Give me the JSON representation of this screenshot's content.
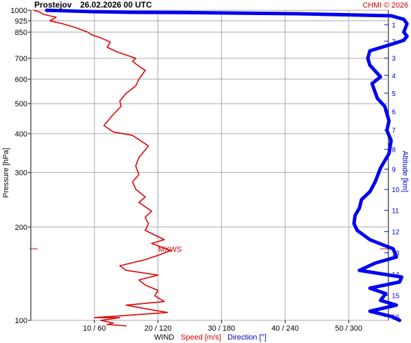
{
  "header": {
    "station": "Prostejov",
    "datetime": "26.02.2026 00 UTC",
    "copyright": "CHMI © 2026"
  },
  "chart_data": {
    "type": "line",
    "title": "Prostejov 26.02.2026 00 UTC",
    "xlabel": "WIND",
    "xlabel_speed": "Speed [m/s]",
    "xlabel_direction": "Direction [°]",
    "ylabel": "Pressure [hPa]",
    "ylabel_right": "Altitude [km]",
    "y_scale": "log",
    "ylim": [
      1000,
      100
    ],
    "pressure_ticks": [
      100,
      200,
      300,
      400,
      500,
      600,
      700,
      850,
      925,
      1000
    ],
    "altitude_ticks": [
      1,
      2,
      3,
      4,
      5,
      6,
      7,
      8,
      9,
      10,
      11,
      12,
      13,
      14,
      15,
      16
    ],
    "x_ticks": [
      "10 / 60",
      "20 / 120",
      "30 / 180",
      "40 / 240",
      "50 / 300"
    ],
    "speed_range": [
      0,
      60
    ],
    "direction_range": [
      0,
      360
    ],
    "grid": true,
    "mxws_label": "MXWS",
    "mxws_pressure": 170,
    "colors": {
      "speed": "#dd0000",
      "direction": "#0000ee",
      "copyright": "#d00000"
    },
    "series": [
      {
        "name": "Speed [m/s]",
        "x": [
          0.5,
          1.5,
          2,
          4,
          3,
          5,
          7,
          9,
          9.5,
          11,
          12.5,
          12,
          13.5,
          16.5,
          16,
          17,
          18,
          17,
          16.5,
          15,
          14,
          14.2,
          12.7,
          11.5,
          13,
          16,
          18.5,
          17,
          16.5,
          17,
          16,
          16.5,
          18,
          17,
          19,
          18,
          18.5,
          18,
          21,
          19,
          22,
          20,
          18,
          14,
          15,
          20,
          17,
          18,
          20,
          19.5,
          21,
          15,
          17,
          21.5,
          10,
          14,
          11,
          13,
          12,
          15
        ],
        "y": [
          1000,
          985,
          970,
          950,
          925,
          905,
          880,
          850,
          835,
          815,
          790,
          760,
          735,
          700,
          685,
          660,
          640,
          600,
          570,
          540,
          510,
          490,
          455,
          425,
          405,
          395,
          365,
          335,
          315,
          295,
          280,
          265,
          250,
          240,
          225,
          215,
          205,
          195,
          182,
          177,
          168,
          162,
          157,
          150,
          145,
          140,
          135,
          130,
          125,
          120,
          115,
          112,
          110,
          106,
          102,
          102,
          100,
          98,
          97,
          96
        ]
      },
      {
        "name": "Direction [°]",
        "x": [
          15,
          60,
          95,
          150,
          250,
          340,
          352,
          355,
          352,
          355,
          352,
          342,
          320,
          318,
          320,
          330,
          322,
          327,
          334,
          338,
          336,
          340,
          338,
          330,
          325,
          320,
          312,
          310,
          306,
          305,
          308,
          320,
          342,
          345,
          325,
          310,
          350,
          348,
          320,
          335,
          330,
          345,
          320,
          340,
          348
        ],
        "y": [
          1000,
          990,
          985,
          983,
          975,
          960,
          935,
          905,
          850,
          825,
          800,
          780,
          740,
          700,
          665,
          610,
          580,
          520,
          490,
          440,
          410,
          380,
          345,
          310,
          280,
          260,
          245,
          230,
          218,
          205,
          195,
          182,
          170,
          160,
          153,
          145,
          138,
          133,
          127,
          122,
          116,
          112,
          107,
          103,
          100
        ]
      }
    ]
  }
}
